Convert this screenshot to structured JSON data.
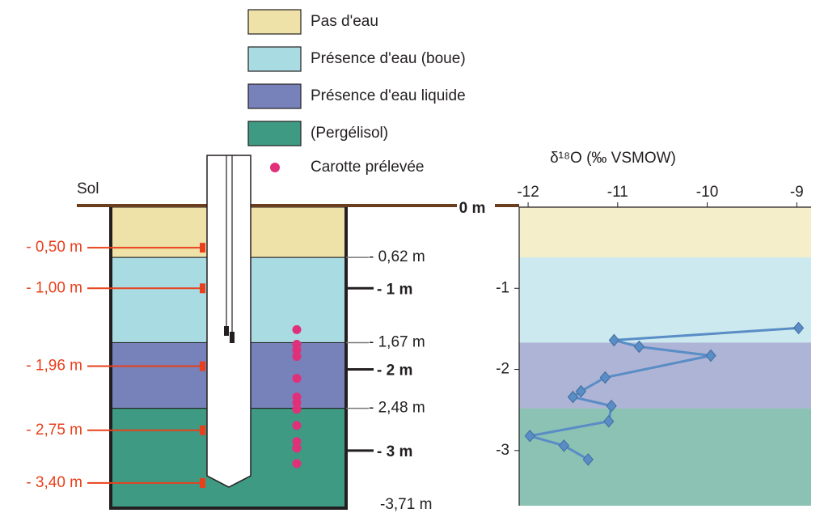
{
  "legend": [
    {
      "label": "Pas d'eau",
      "color": "#efe2a8"
    },
    {
      "label": "Présence d'eau (boue)",
      "color": "#a9dbe2"
    },
    {
      "label": "Présence d'eau liquide",
      "color": "#7682b9"
    },
    {
      "label": "(Pergélisol)",
      "color": "#3e9a82"
    },
    {
      "label": "Carotte prélevée",
      "color": "#e0307a"
    }
  ],
  "diagram": {
    "surface_label": "Sol",
    "boundaries": [
      {
        "value": 0,
        "label": "0 m"
      },
      {
        "value": 0.62,
        "label": "- 0,62 m"
      },
      {
        "value": 1.67,
        "label": "- 1,67 m"
      },
      {
        "value": 2.48,
        "label": "- 2,48 m"
      },
      {
        "value": 3.71,
        "label": "-3,71 m"
      }
    ],
    "meter_ticks": [
      {
        "value": 1,
        "label": "- 1 m"
      },
      {
        "value": 2,
        "label": "- 2 m"
      },
      {
        "value": 3,
        "label": "- 3 m"
      }
    ],
    "samples": [
      {
        "value": 0.5,
        "label": "- 0,50 m"
      },
      {
        "value": 1.0,
        "label": "- 1,00 m"
      },
      {
        "value": 1.96,
        "label": "- 1,96 m"
      },
      {
        "value": 2.75,
        "label": "- 2,75 m"
      },
      {
        "value": 3.4,
        "label": "- 3,40 m"
      }
    ],
    "cores": [
      1.51,
      1.69,
      1.76,
      1.84,
      2.11,
      2.34,
      2.41,
      2.49,
      2.69,
      2.89,
      2.97,
      3.16
    ]
  },
  "chart_data": {
    "type": "line",
    "xlabel": "δ¹⁸O  (‰ VSMOW)",
    "series": [
      {
        "color": "#5a8cc6",
        "x": [
          -8.98,
          -11.04,
          -10.76,
          -9.96,
          -11.14,
          -11.41,
          -11.5,
          -11.07,
          -11.1,
          -11.98,
          -11.6,
          -11.33
        ],
        "values": [
          -1.49,
          -1.64,
          -1.72,
          -1.83,
          -2.1,
          -2.27,
          -2.34,
          -2.45,
          -2.64,
          -2.82,
          -2.94,
          -3.11
        ]
      }
    ],
    "xlim": [
      -12.1,
      -8.84
    ],
    "xticks": [
      -12,
      -11,
      -10,
      -9
    ],
    "ylim": [
      0,
      -3.68
    ],
    "yticks": [
      -1,
      -2,
      -3
    ]
  }
}
